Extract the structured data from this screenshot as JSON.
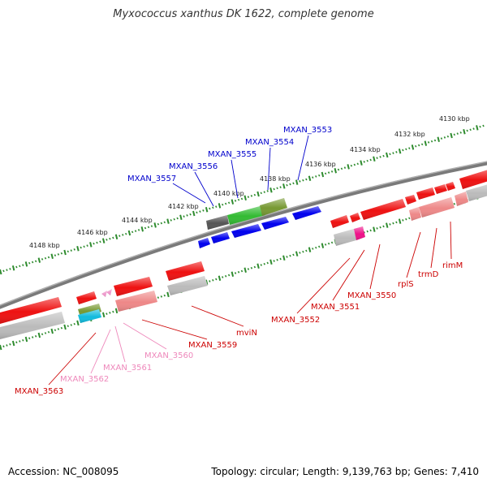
{
  "title": "Myxococcus xanthus DK 1622, complete genome",
  "accession": "Accession: NC_008095",
  "stats": "Topology: circular; Length: 9,139,763 bp; Genes: 7,410",
  "colors": {
    "backbone": "#808080",
    "tick": "#2e8b2e",
    "gene_red": "#ee1111",
    "gene_pink": "#ee8888",
    "gene_blue": "#0000ee",
    "gene_green": "#33bb33",
    "gene_olive": "#779933",
    "gene_darkgray": "#666666",
    "gene_gray": "#bbbbbb",
    "gene_magenta": "#ee1188",
    "gene_cyan": "#11bbdd",
    "gene_palepink": "#ee99cc",
    "label_blue": "#0000cc",
    "label_red": "#cc0000",
    "label_pink": "#ee88bb"
  },
  "ticks": [
    {
      "label": "4148 kbp"
    },
    {
      "label": "4146 kbp"
    },
    {
      "label": "4144 kbp"
    },
    {
      "label": "4142 kbp"
    },
    {
      "label": "4140 kbp"
    },
    {
      "label": "4138 kbp"
    },
    {
      "label": "4136 kbp"
    },
    {
      "label": "4134 kbp"
    },
    {
      "label": "4132 kbp"
    },
    {
      "label": "4130 kbp"
    }
  ],
  "genes_above": [
    {
      "label": "MXAN_3557",
      "color": "label_blue"
    },
    {
      "label": "MXAN_3556",
      "color": "label_blue"
    },
    {
      "label": "MXAN_3555",
      "color": "label_blue"
    },
    {
      "label": "MXAN_3554",
      "color": "label_blue"
    },
    {
      "label": "MXAN_3553",
      "color": "label_blue"
    }
  ],
  "genes_below": [
    {
      "label": "MXAN_3563",
      "color": "label_red"
    },
    {
      "label": "MXAN_3562",
      "color": "label_pink"
    },
    {
      "label": "MXAN_3561",
      "color": "label_pink"
    },
    {
      "label": "MXAN_3560",
      "color": "label_pink"
    },
    {
      "label": "MXAN_3559",
      "color": "label_red"
    },
    {
      "label": "mviN",
      "color": "label_red"
    },
    {
      "label": "MXAN_3552",
      "color": "label_red"
    },
    {
      "label": "MXAN_3551",
      "color": "label_red"
    },
    {
      "label": "MXAN_3550",
      "color": "label_red"
    },
    {
      "label": "rplS",
      "color": "label_red"
    },
    {
      "label": "trmD",
      "color": "label_red"
    },
    {
      "label": "rimM",
      "color": "label_red"
    }
  ]
}
